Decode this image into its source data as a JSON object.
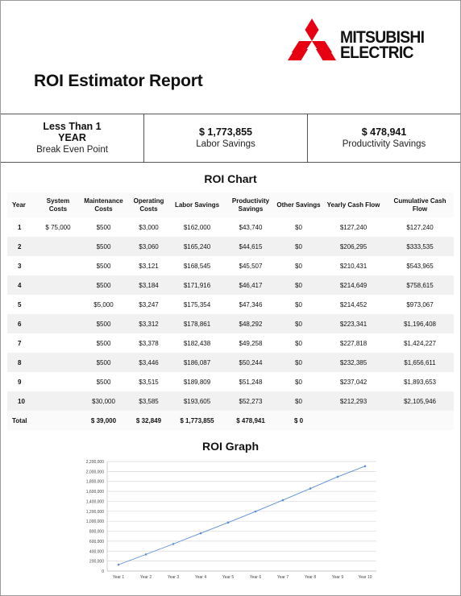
{
  "brand": {
    "name_line1": "MITSUBISHI",
    "name_line2": "ELECTRIC",
    "logo_color": "#e60012"
  },
  "report": {
    "title": "ROI Estimator Report"
  },
  "summary": [
    {
      "main": "Less Than 1",
      "main2": "YEAR",
      "sub": "Break Even Point"
    },
    {
      "main": "$ 1,773,855",
      "sub": "Labor Savings"
    },
    {
      "main": "$ 478,941",
      "sub": "Productivity Savings"
    }
  ],
  "roi_chart": {
    "title": "ROI Chart",
    "headers": [
      "Year",
      "System Costs",
      "Maintenance Costs",
      "Operating Costs",
      "Labor Savings",
      "Productivity Savings",
      "Other Savings",
      "Yearly Cash Flow",
      "Cumulative Cash Flow"
    ],
    "rows": [
      [
        "1",
        "$ 75,000",
        "$500",
        "$3,000",
        "$162,000",
        "$43,740",
        "$0",
        "$127,240",
        "$127,240"
      ],
      [
        "2",
        "",
        "$500",
        "$3,060",
        "$165,240",
        "$44,615",
        "$0",
        "$206,295",
        "$333,535"
      ],
      [
        "3",
        "",
        "$500",
        "$3,121",
        "$168,545",
        "$45,507",
        "$0",
        "$210,431",
        "$543,965"
      ],
      [
        "4",
        "",
        "$500",
        "$3,184",
        "$171,916",
        "$46,417",
        "$0",
        "$214,649",
        "$758,615"
      ],
      [
        "5",
        "",
        "$5,000",
        "$3,247",
        "$175,354",
        "$47,346",
        "$0",
        "$214,452",
        "$973,067"
      ],
      [
        "6",
        "",
        "$500",
        "$3,312",
        "$178,861",
        "$48,292",
        "$0",
        "$223,341",
        "$1,196,408"
      ],
      [
        "7",
        "",
        "$500",
        "$3,378",
        "$182,438",
        "$49,258",
        "$0",
        "$227,818",
        "$1,424,227"
      ],
      [
        "8",
        "",
        "$500",
        "$3,446",
        "$186,087",
        "$50,244",
        "$0",
        "$232,385",
        "$1,656,611"
      ],
      [
        "9",
        "",
        "$500",
        "$3,515",
        "$189,809",
        "$51,248",
        "$0",
        "$237,042",
        "$1,893,653"
      ],
      [
        "10",
        "",
        "$30,000",
        "$3,585",
        "$193,605",
        "$52,273",
        "$0",
        "$212,293",
        "$2,105,946"
      ]
    ],
    "total": [
      "Total",
      "",
      "$ 39,000",
      "$ 32,849",
      "$ 1,773,855",
      "$ 478,941",
      "$ 0",
      "",
      ""
    ]
  },
  "roi_graph": {
    "title": "ROI Graph",
    "line_color": "#5b8fd6"
  },
  "chart_data": {
    "type": "line",
    "title": "ROI Graph",
    "categories": [
      "Year 1",
      "Year 2",
      "Year 3",
      "Year 4",
      "Year 5",
      "Year 6",
      "Year 7",
      "Year 8",
      "Year 9",
      "Year 10"
    ],
    "values": [
      127240,
      333535,
      543965,
      758615,
      973067,
      1196408,
      1424227,
      1656611,
      1893653,
      2105946
    ],
    "ylim": [
      0,
      2200000
    ],
    "yticks": [
      "0",
      "200,000",
      "400,000",
      "600,000",
      "800,000",
      "1,000,000",
      "1,200,000",
      "1,400,000",
      "1,600,000",
      "1,800,000",
      "2,000,000",
      "2,200,000"
    ],
    "ytick_values": [
      0,
      200000,
      400000,
      600000,
      800000,
      1000000,
      1200000,
      1400000,
      1600000,
      1800000,
      2000000,
      2200000
    ],
    "grid": true,
    "xlabel": "",
    "ylabel": ""
  }
}
